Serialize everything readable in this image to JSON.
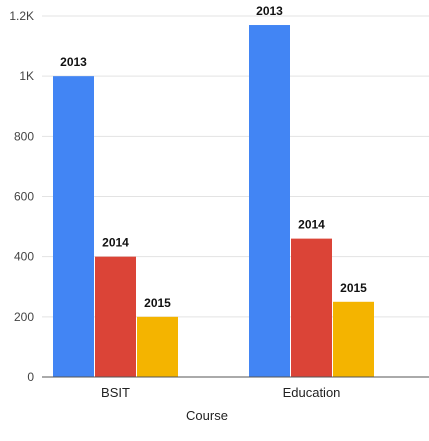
{
  "chart_data": {
    "type": "bar",
    "categories": [
      "BSIT",
      "Education"
    ],
    "series": [
      {
        "values": [
          1000,
          1170
        ],
        "color": "#4285f4",
        "label": "2013"
      },
      {
        "values": [
          400,
          460
        ],
        "color": "#db4437",
        "label": "2014"
      },
      {
        "values": [
          200,
          250
        ],
        "color": "#f4b400",
        "label": "2015"
      }
    ],
    "xlabel": "Course",
    "ylabel": "",
    "ylim": [
      0,
      1200
    ],
    "yticks": [
      0,
      200,
      400,
      600,
      800,
      1000,
      1200
    ],
    "ytick_labels": [
      "0",
      "200",
      "400",
      "600",
      "800",
      "1K",
      "1.2K"
    ],
    "grid": true,
    "legend": "none"
  }
}
